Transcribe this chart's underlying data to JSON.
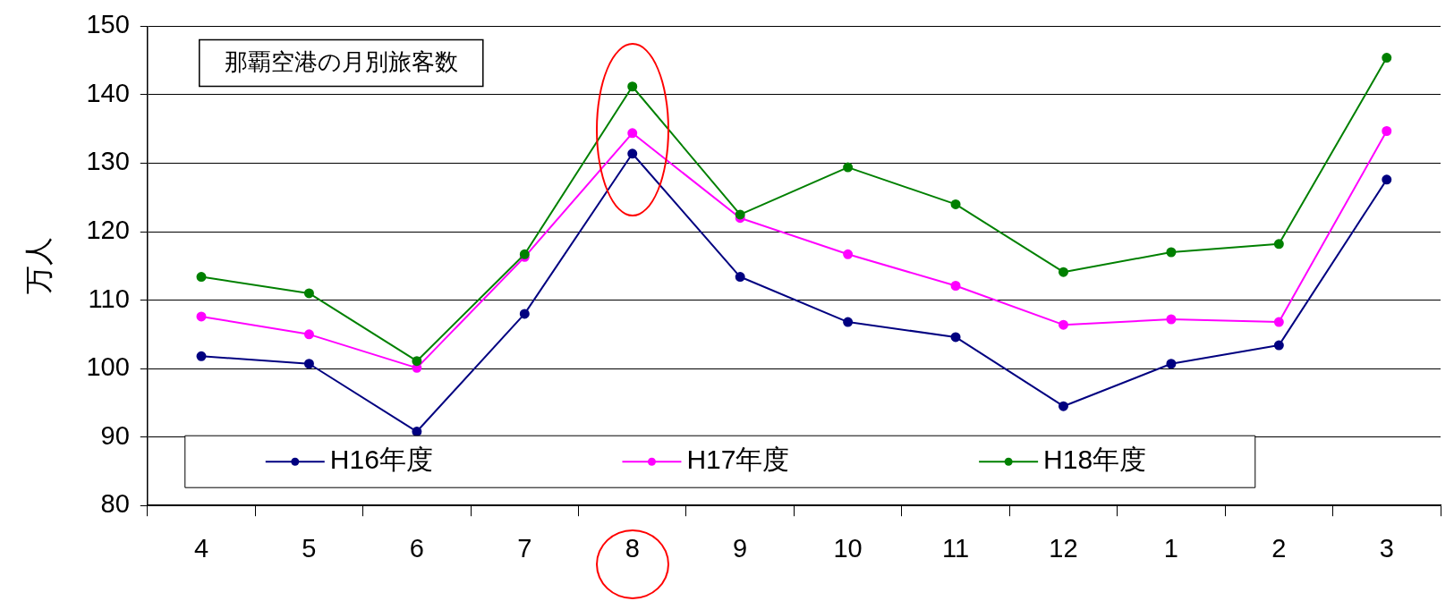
{
  "chart_data": {
    "type": "line",
    "title": "那覇空港の月別旅客数",
    "ylabel": "万人",
    "categories": [
      "4",
      "5",
      "6",
      "7",
      "8",
      "9",
      "10",
      "11",
      "12",
      "1",
      "2",
      "3"
    ],
    "series": [
      {
        "name": "H16年度",
        "color": "#000080",
        "values": [
          101.8,
          100.7,
          90.8,
          108.0,
          131.4,
          113.4,
          106.8,
          104.6,
          94.5,
          100.7,
          103.4,
          127.6
        ]
      },
      {
        "name": "H17年度",
        "color": "#ff00ff",
        "values": [
          107.6,
          105.0,
          100.1,
          116.3,
          134.4,
          122.0,
          116.7,
          112.1,
          106.4,
          107.2,
          106.8,
          134.7
        ]
      },
      {
        "name": "H18年度",
        "color": "#008000",
        "values": [
          113.4,
          111.0,
          101.1,
          116.7,
          141.2,
          122.5,
          129.4,
          124.0,
          114.1,
          117.0,
          118.2,
          145.4
        ]
      }
    ],
    "ylim": [
      80,
      150
    ],
    "yticks": [
      80,
      90,
      100,
      110,
      120,
      130,
      140,
      150
    ],
    "grid": "y",
    "legend": "bottom",
    "marker": "circle",
    "line_style": "solid"
  }
}
